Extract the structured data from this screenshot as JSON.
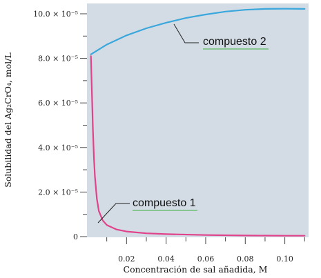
{
  "chart_data": {
    "type": "line",
    "xlabel": "Concentración de sal añadida, M",
    "ylabel": "Solubilidad del Ag₂CrO₄, mol/L",
    "xlim": [
      0,
      0.112
    ],
    "ylim": [
      0,
      0.0001
    ],
    "x_ticks": [
      {
        "value": 0.02,
        "label": "0.02"
      },
      {
        "value": 0.04,
        "label": "0.04"
      },
      {
        "value": 0.06,
        "label": "0.06"
      },
      {
        "value": 0.08,
        "label": "0.08"
      },
      {
        "value": 0.1,
        "label": "0.10"
      }
    ],
    "y_ticks": [
      {
        "value": 0,
        "label": "0"
      },
      {
        "value": 2e-05,
        "label": "2.0 × 10⁻⁵"
      },
      {
        "value": 4e-05,
        "label": "4.0 × 10⁻⁵"
      },
      {
        "value": 6e-05,
        "label": "6.0 × 10⁻⁵"
      },
      {
        "value": 8e-05,
        "label": "8.0 × 10⁻⁵"
      },
      {
        "value": 0.0001,
        "label": "10.0 × 10⁻⁵"
      }
    ],
    "grid": false,
    "series": [
      {
        "name": "compuesto 2",
        "color": "#3aa7dc",
        "points": [
          {
            "x": 0.002,
            "y": 8.18e-05
          },
          {
            "x": 0.01,
            "y": 8.62e-05
          },
          {
            "x": 0.02,
            "y": 9.03e-05
          },
          {
            "x": 0.03,
            "y": 9.35e-05
          },
          {
            "x": 0.04,
            "y": 9.6e-05
          },
          {
            "x": 0.05,
            "y": 9.81e-05
          },
          {
            "x": 0.06,
            "y": 9.97e-05
          },
          {
            "x": 0.07,
            "y": 0.000101
          },
          {
            "x": 0.08,
            "y": 0.0001018
          },
          {
            "x": 0.09,
            "y": 0.0001022
          },
          {
            "x": 0.1,
            "y": 0.0001023
          },
          {
            "x": 0.11,
            "y": 0.0001022
          }
        ]
      },
      {
        "name": "compuesto 1",
        "color": "#e0428b",
        "points": [
          {
            "x": 0.002,
            "y": 8.1e-05
          },
          {
            "x": 0.0025,
            "y": 6.4e-05
          },
          {
            "x": 0.003,
            "y": 4.8e-05
          },
          {
            "x": 0.0035,
            "y": 3.6e-05
          },
          {
            "x": 0.004,
            "y": 2.7e-05
          },
          {
            "x": 0.005,
            "y": 1.7e-05
          },
          {
            "x": 0.006,
            "y": 1.15e-05
          },
          {
            "x": 0.008,
            "y": 7.2e-06
          },
          {
            "x": 0.01,
            "y": 5.2e-06
          },
          {
            "x": 0.015,
            "y": 3.2e-06
          },
          {
            "x": 0.02,
            "y": 2.3e-06
          },
          {
            "x": 0.03,
            "y": 1.5e-06
          },
          {
            "x": 0.04,
            "y": 1.1e-06
          },
          {
            "x": 0.06,
            "y": 7e-07
          },
          {
            "x": 0.08,
            "y": 5e-07
          },
          {
            "x": 0.1,
            "y": 4e-07
          },
          {
            "x": 0.11,
            "y": 4e-07
          }
        ]
      }
    ],
    "annotations": [
      {
        "text": "compuesto 2",
        "series": "compuesto 2"
      },
      {
        "text": "compuesto 1",
        "series": "compuesto 1"
      }
    ]
  },
  "colors": {
    "plot_background": "#d3dce4",
    "annotation_underline": "#3fae3f",
    "axis": "#444444"
  }
}
